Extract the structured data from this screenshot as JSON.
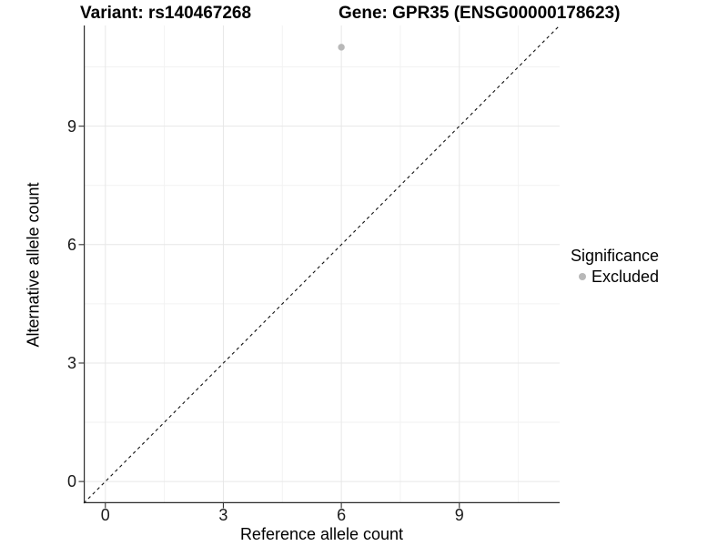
{
  "titles": {
    "left": "Variant: rs140467268",
    "right": "Gene: GPR35 (ENSG00000178623)"
  },
  "chart_data": {
    "type": "scatter",
    "xlabel": "Reference allele count",
    "ylabel": "Alternative allele count",
    "xticks": [
      0,
      3,
      6,
      9
    ],
    "yticks": [
      0,
      3,
      6,
      9
    ],
    "minor_xticks": [
      1.5,
      4.5,
      7.5,
      10.5
    ],
    "minor_yticks": [
      1.5,
      4.5,
      7.5,
      10.5
    ],
    "xlim": [
      -0.55,
      11.55
    ],
    "ylim": [
      -0.55,
      11.55
    ],
    "grid": "major+minor",
    "series": [
      {
        "name": "Excluded",
        "color": "#b8b8b8",
        "points": [
          {
            "x": 6,
            "y": 11
          }
        ]
      }
    ],
    "reference_line": {
      "type": "identity y=x",
      "style": "dashed",
      "color": "#111111"
    },
    "legend": {
      "title": "Significance",
      "position": "right",
      "items": [
        {
          "label": "Excluded",
          "color": "#b8b8b8"
        }
      ]
    }
  },
  "colors": {
    "background": "#ffffff",
    "grid_major": "#e7e7e7",
    "grid_minor": "#f2f2f2",
    "axis_line": "#2b2b2b",
    "tick_mark": "#333333",
    "text": "#000000",
    "point": "#b8b8b8"
  }
}
